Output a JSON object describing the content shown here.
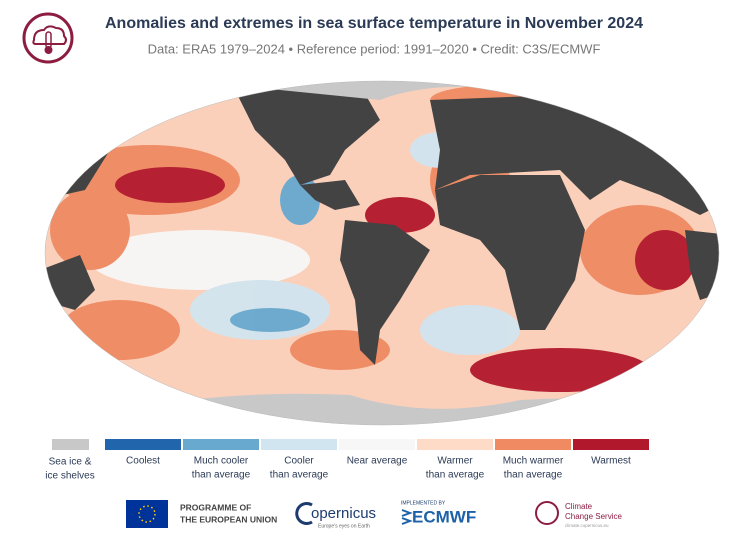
{
  "header": {
    "title": "Anomalies and extremes in sea surface temperature in November 2024",
    "subtitle": "Data: ERA5 1979–2024 • Reference period: 1991–2020 • Credit: C3S/ECMWF"
  },
  "legend": [
    {
      "lines": [
        "Sea ice &",
        "ice shelves"
      ],
      "color": "#c8c8c8"
    },
    {
      "lines": [
        "Coolest"
      ],
      "color": "#2166ac"
    },
    {
      "lines": [
        "Much cooler",
        "than average"
      ],
      "color": "#67a9cf"
    },
    {
      "lines": [
        "Cooler",
        "than average"
      ],
      "color": "#d1e5f0"
    },
    {
      "lines": [
        "Near average"
      ],
      "color": "#f7f7f7"
    },
    {
      "lines": [
        "Warmer",
        "than average"
      ],
      "color": "#fddbc7"
    },
    {
      "lines": [
        "Much warmer",
        "than average"
      ],
      "color": "#ef8a62"
    },
    {
      "lines": [
        "Warmest"
      ],
      "color": "#b2182b"
    }
  ],
  "footer": {
    "eu": [
      "PROGRAMME OF",
      "THE EUROPEAN UNION"
    ],
    "copernicus": {
      "name": "opernicus",
      "tagline": "Europe's eyes on Earth"
    },
    "ecmwf": {
      "prefix": "IMPLEMENTED BY",
      "name": "ECMWF"
    },
    "c3s": {
      "lines": [
        "Climate",
        "Change Service"
      ],
      "url": "climate.copernicus.eu"
    }
  }
}
